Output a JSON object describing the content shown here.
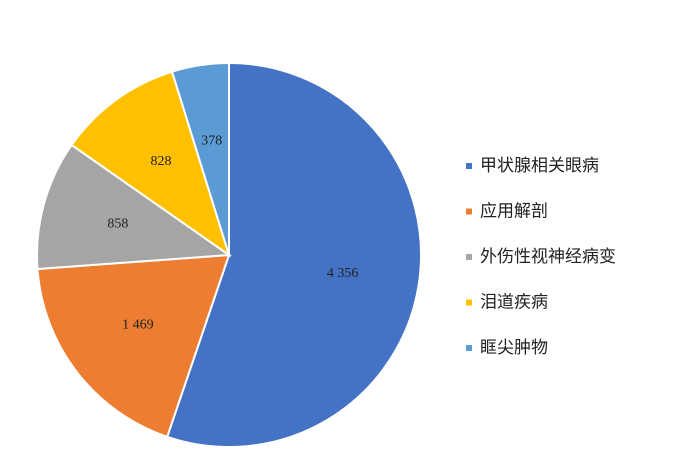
{
  "chart_data": {
    "type": "pie",
    "categories": [
      "甲状腺相关眼病",
      "应用解剖",
      "外伤性视神经病变",
      "泪道疾病",
      "眶尖肿物"
    ],
    "values": [
      4356,
      1469,
      858,
      828,
      378
    ],
    "value_labels": [
      "4 356",
      "1 469",
      "858",
      "828",
      "378"
    ],
    "colors": [
      "#4472c4",
      "#ed7d31",
      "#a5a5a5",
      "#ffc000",
      "#5b9bd5"
    ],
    "legend": "right"
  }
}
